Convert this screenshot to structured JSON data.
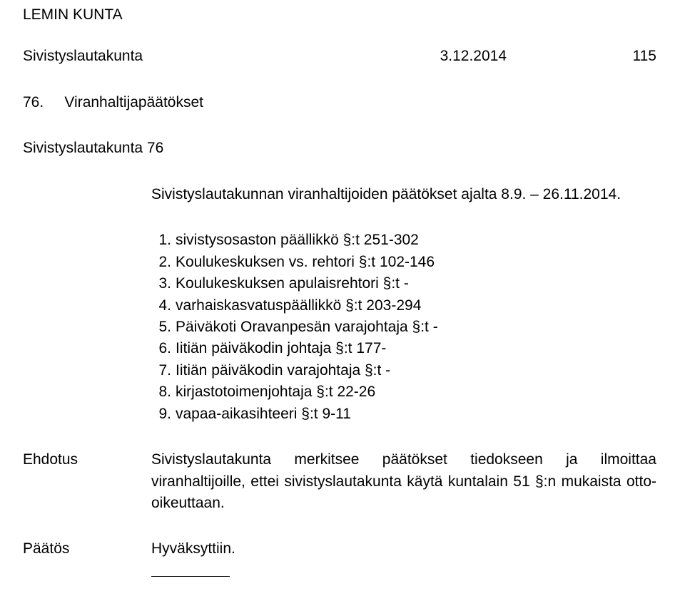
{
  "header": {
    "org": "LEMIN KUNTA",
    "body": "Sivistyslautakunta",
    "date": "3.12.2014",
    "pagenum": "115"
  },
  "title": {
    "num": "76.",
    "text": "Viranhaltijapäätökset"
  },
  "subtitle": "Sivistyslautakunta 76",
  "intro": "Sivistyslautakunnan viranhaltijoiden päätökset ajalta 8.9. – 26.11.2014.",
  "items": [
    {
      "n": "1.",
      "t": "sivistysosaston päällikkö §:t 251-302"
    },
    {
      "n": "2.",
      "t": "Koulukeskuksen vs. rehtori §:t 102-146"
    },
    {
      "n": "3.",
      "t": "Koulukeskuksen apulaisrehtori §:t -"
    },
    {
      "n": "4.",
      "t": "varhaiskasvatuspäällikkö §:t 203-294"
    },
    {
      "n": "5.",
      "t": "Päiväkoti Oravanpesän varajohtaja §:t -"
    },
    {
      "n": "6.",
      "t": "Iitiän päiväkodin johtaja §:t 177-"
    },
    {
      "n": "7.",
      "t": "Iitiän päiväkodin varajohtaja §:t -"
    },
    {
      "n": "8.",
      "t": "kirjastotoimenjohtaja §:t 22-26"
    },
    {
      "n": "9.",
      "t": "vapaa-aikasihteeri §:t 9-11"
    }
  ],
  "proposal": {
    "label": "Ehdotus",
    "text": "Sivistyslautakunta merkitsee päätökset tiedokseen ja ilmoittaa viranhaltijoille, ettei sivistyslautakunta käytä kuntalain 51 §:n mukaista otto-oikeuttaan."
  },
  "decision": {
    "label": "Päätös",
    "text": "Hyväksyttiin."
  }
}
